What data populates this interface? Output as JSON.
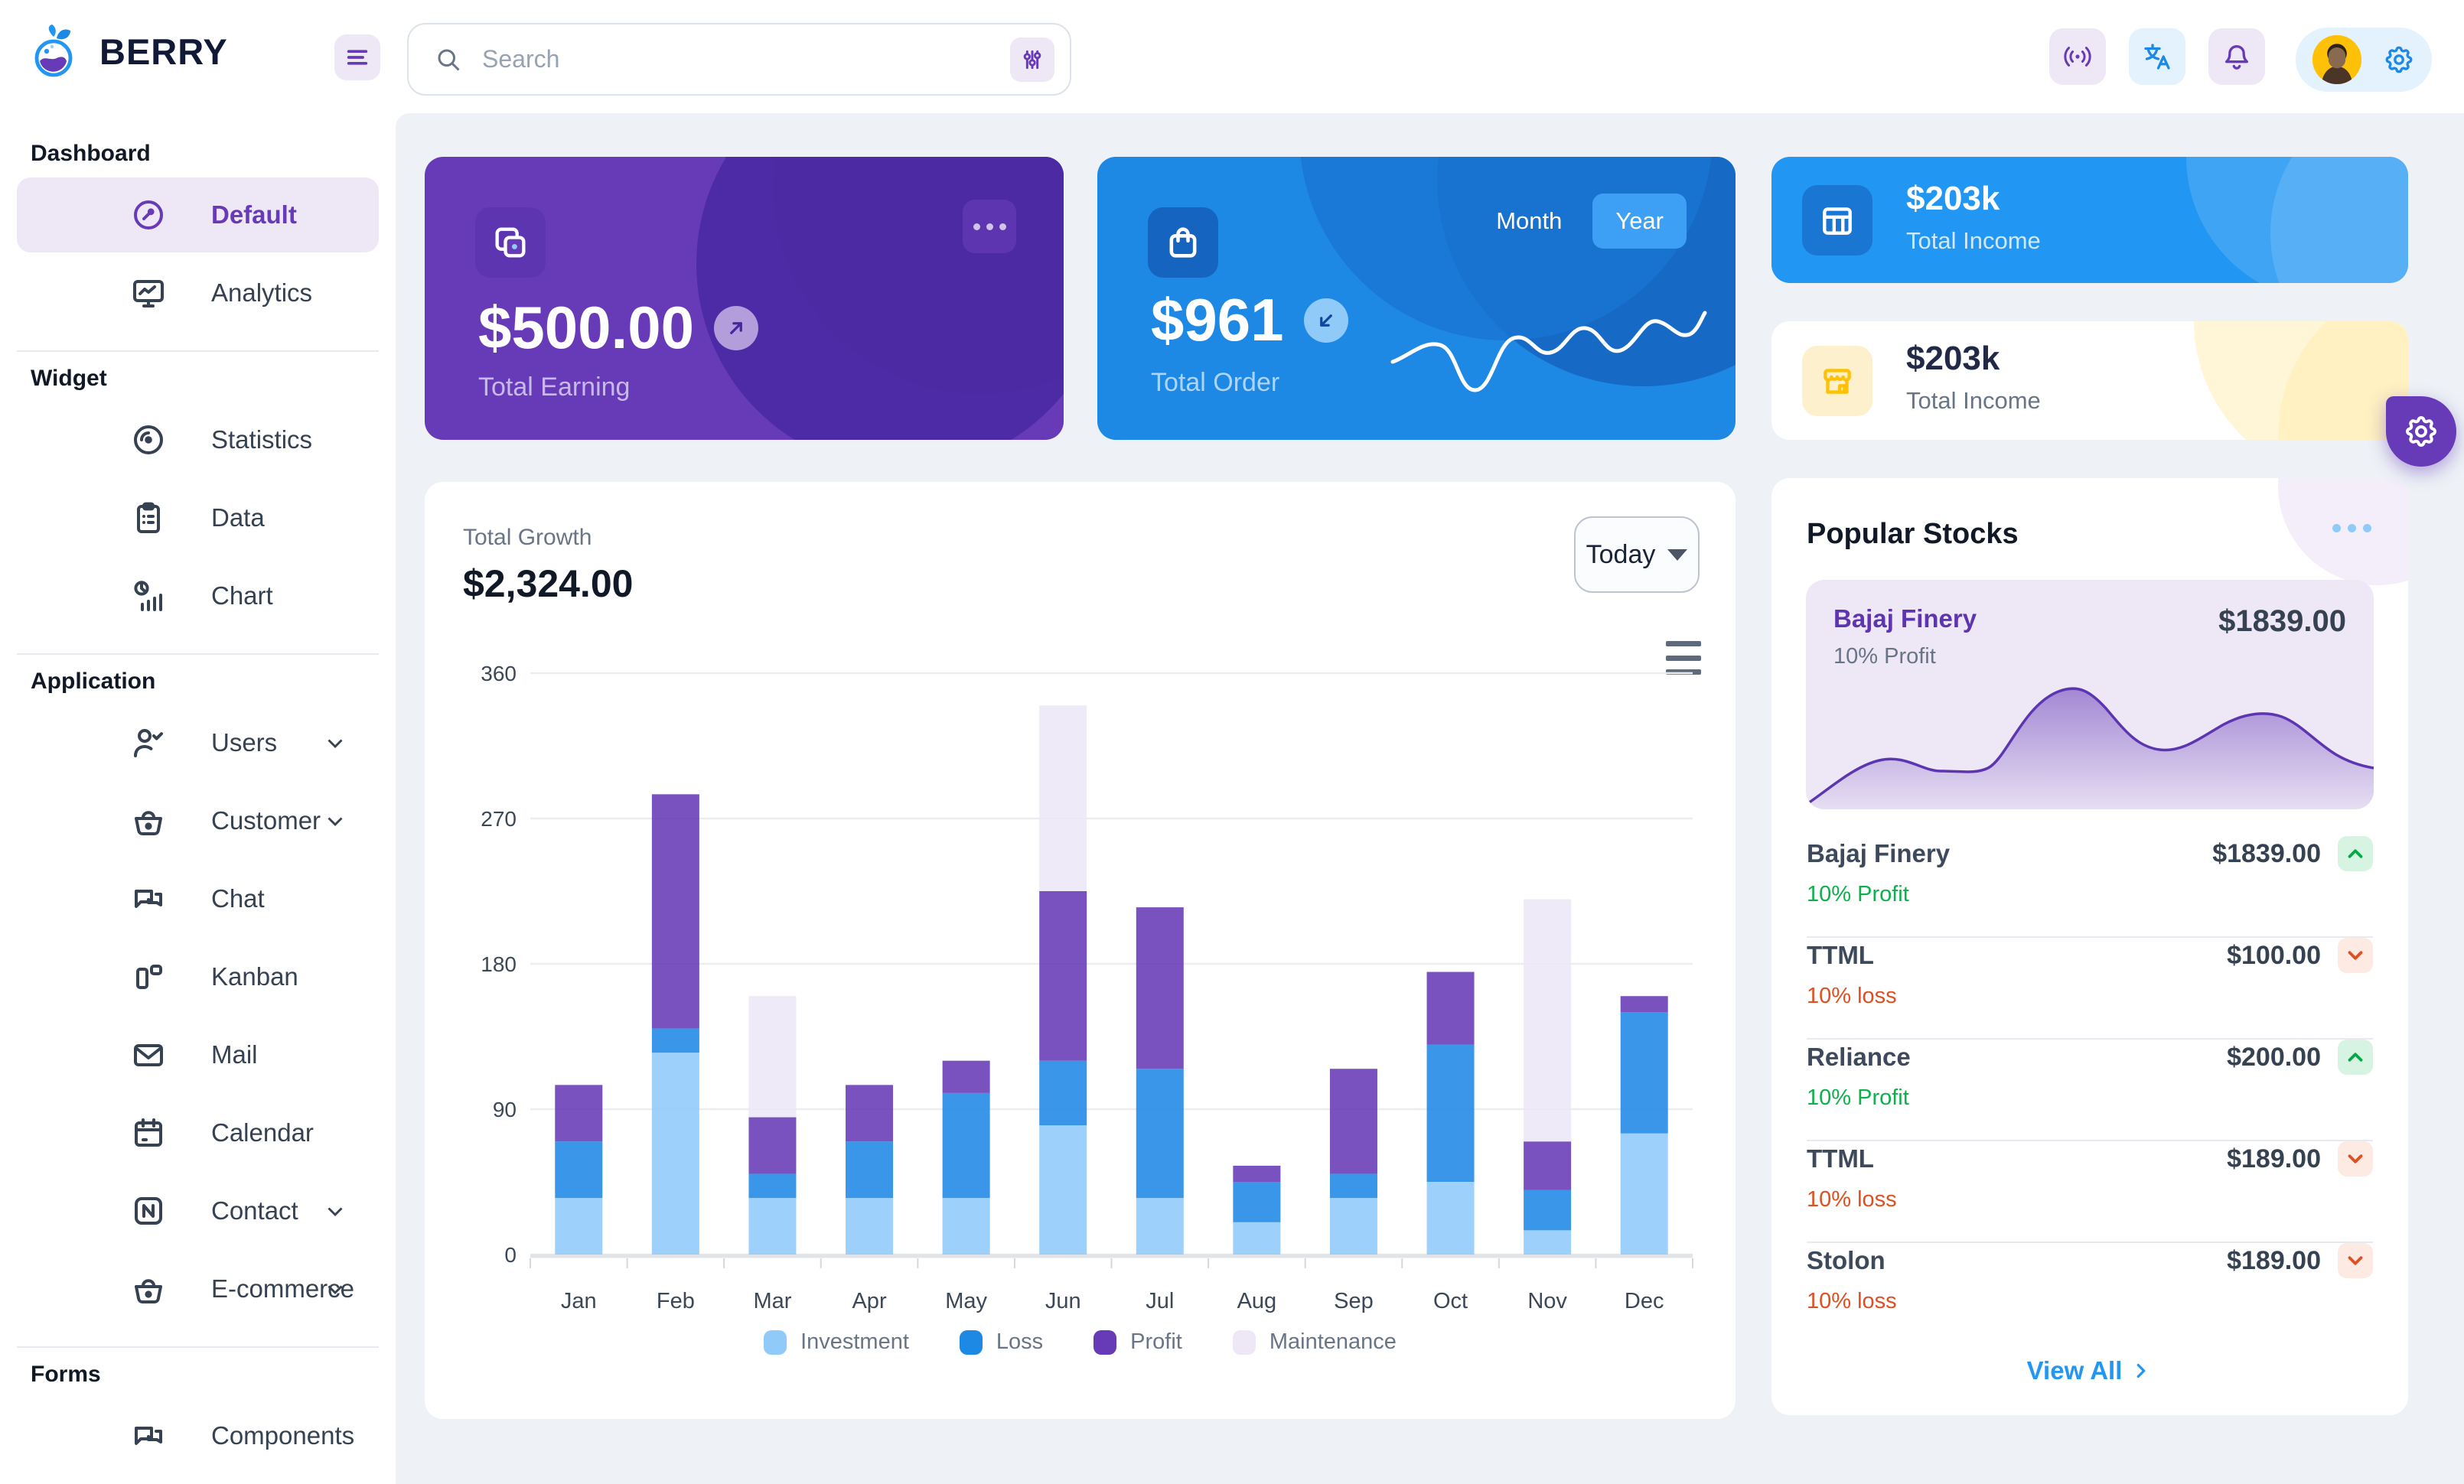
{
  "header": {
    "brand": "BERRY",
    "search_placeholder": "Search",
    "icons": [
      "hamburger-icon",
      "search-icon",
      "adjustments-icon",
      "broadcast-icon",
      "translate-icon",
      "bell-icon",
      "avatar",
      "gear-icon"
    ]
  },
  "sidebar": {
    "sections": [
      {
        "title": "Dashboard",
        "items": [
          {
            "label": "Default",
            "icon": "gauge-icon",
            "active": true
          },
          {
            "label": "Analytics",
            "icon": "monitor-chart-icon"
          }
        ]
      },
      {
        "title": "Widget",
        "items": [
          {
            "label": "Statistics",
            "icon": "disc-icon"
          },
          {
            "label": "Data",
            "icon": "clipboard-icon"
          },
          {
            "label": "Chart",
            "icon": "pie-bar-icon"
          }
        ]
      },
      {
        "title": "Application",
        "items": [
          {
            "label": "Users",
            "icon": "user-check-icon",
            "expandable": true
          },
          {
            "label": "Customer",
            "icon": "basket-icon",
            "expandable": true
          },
          {
            "label": "Chat",
            "icon": "chat-icon"
          },
          {
            "label": "Kanban",
            "icon": "kanban-icon"
          },
          {
            "label": "Mail",
            "icon": "mail-icon"
          },
          {
            "label": "Calendar",
            "icon": "calendar-icon"
          },
          {
            "label": "Contact",
            "icon": "contact-icon",
            "expandable": true
          },
          {
            "label": "E-commerce",
            "icon": "basket-icon",
            "expandable": true
          }
        ]
      },
      {
        "title": "Forms",
        "items": [
          {
            "label": "Components",
            "icon": "chat-icon",
            "partial": true
          }
        ]
      }
    ]
  },
  "cards": {
    "earning": {
      "value": "$500.00",
      "label": "Total Earning",
      "icon": "copy-icon",
      "menu_icon": "ellipsis-icon",
      "trend_icon": "arrow-up-right-icon"
    },
    "order": {
      "value": "$961",
      "label": "Total Order",
      "icon": "shopping-bag-icon",
      "trend_icon": "arrow-down-left-icon",
      "toggle": {
        "options": [
          "Month",
          "Year"
        ],
        "selected": "Year"
      }
    },
    "income_primary": {
      "value": "$203k",
      "label": "Total Income",
      "icon": "table-icon"
    },
    "income_warning": {
      "value": "$203k",
      "label": "Total Income",
      "icon": "storefront-icon"
    }
  },
  "growth": {
    "label": "Total Growth",
    "value": "$2,324.00",
    "period": "Today",
    "chart_data": {
      "type": "bar",
      "stacked": true,
      "title": "Total Growth",
      "xlabel": "",
      "ylabel": "",
      "categories": [
        "Jan",
        "Feb",
        "Mar",
        "Apr",
        "May",
        "Jun",
        "Jul",
        "Aug",
        "Sep",
        "Oct",
        "Nov",
        "Dec"
      ],
      "series": [
        {
          "name": "Investment",
          "color": "#90caf9",
          "values": [
            35,
            125,
            35,
            35,
            35,
            80,
            35,
            20,
            35,
            45,
            15,
            75
          ]
        },
        {
          "name": "Loss",
          "color": "#1e88e5",
          "values": [
            35,
            15,
            15,
            35,
            65,
            40,
            80,
            25,
            15,
            85,
            25,
            75
          ]
        },
        {
          "name": "Profit",
          "color": "#673ab7",
          "values": [
            35,
            145,
            35,
            35,
            20,
            105,
            100,
            10,
            65,
            45,
            30,
            10
          ]
        },
        {
          "name": "Maintenance",
          "color": "#ede7f6",
          "values": [
            0,
            0,
            75,
            0,
            0,
            115,
            0,
            0,
            0,
            0,
            150,
            0
          ]
        }
      ],
      "ylim": [
        0,
        360
      ],
      "yticks": [
        0,
        90,
        180,
        270,
        360
      ],
      "grid": true,
      "legend_position": "bottom"
    }
  },
  "stocks": {
    "title": "Popular Stocks",
    "featured": {
      "name": "Bajaj Finery",
      "change": "10% Profit",
      "price": "$1839.00",
      "chart": "purple-area-sparkline"
    },
    "rows": [
      {
        "name": "Bajaj Finery",
        "change": "10% Profit",
        "price": "$1839.00",
        "direction": "up"
      },
      {
        "name": "TTML",
        "change": "10% loss",
        "price": "$100.00",
        "direction": "down"
      },
      {
        "name": "Reliance",
        "change": "10% Profit",
        "price": "$200.00",
        "direction": "up"
      },
      {
        "name": "TTML",
        "change": "10% loss",
        "price": "$189.00",
        "direction": "down"
      },
      {
        "name": "Stolon",
        "change": "10% loss",
        "price": "$189.00",
        "direction": "down"
      }
    ],
    "view_all": "View All"
  },
  "colors": {
    "primary": "#2196f3",
    "primary_dark": "#1e88e5",
    "secondary": "#673ab7",
    "secondary_light": "#ede7f6",
    "background": "#eef2f6",
    "success": "#0cb14b",
    "error": "#e04f20",
    "warning": "#ffc107",
    "text_dark": "#121926",
    "text": "#364152",
    "text_muted": "#697586"
  }
}
